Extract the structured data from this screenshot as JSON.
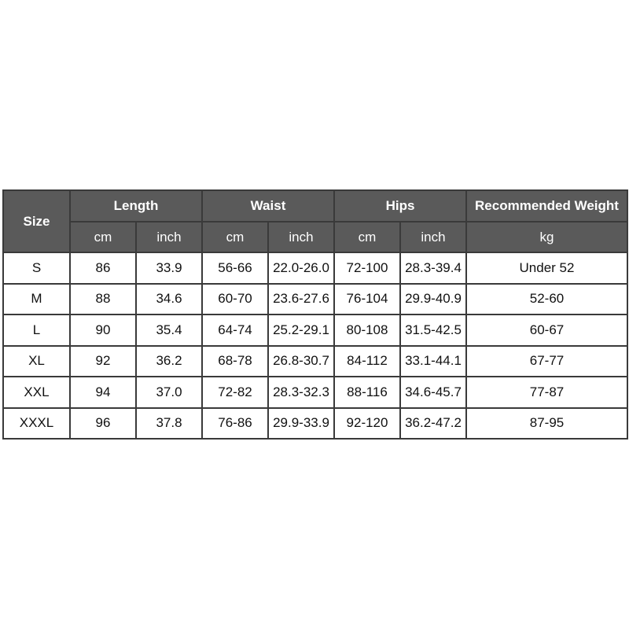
{
  "table": {
    "size_header": "Size",
    "groups": [
      "Length",
      "Waist",
      "Hips",
      "Recommended Weight"
    ],
    "units": [
      "cm",
      "inch",
      "cm",
      "inch",
      "cm",
      "inch",
      "kg"
    ],
    "rows": [
      [
        "S",
        "86",
        "33.9",
        "56-66",
        "22.0-26.0",
        "72-100",
        "28.3-39.4",
        "Under 52"
      ],
      [
        "M",
        "88",
        "34.6",
        "60-70",
        "23.6-27.6",
        "76-104",
        "29.9-40.9",
        "52-60"
      ],
      [
        "L",
        "90",
        "35.4",
        "64-74",
        "25.2-29.1",
        "80-108",
        "31.5-42.5",
        "60-67"
      ],
      [
        "XL",
        "92",
        "36.2",
        "68-78",
        "26.8-30.7",
        "84-112",
        "33.1-44.1",
        "67-77"
      ],
      [
        "XXL",
        "94",
        "37.0",
        "72-82",
        "28.3-32.3",
        "88-116",
        "34.6-45.7",
        "77-87"
      ],
      [
        "XXXL",
        "96",
        "37.8",
        "76-86",
        "29.9-33.9",
        "92-120",
        "36.2-47.2",
        "87-95"
      ]
    ]
  },
  "colors": {
    "header_bg": "#5a5a5a",
    "border": "#3a3a3a"
  }
}
